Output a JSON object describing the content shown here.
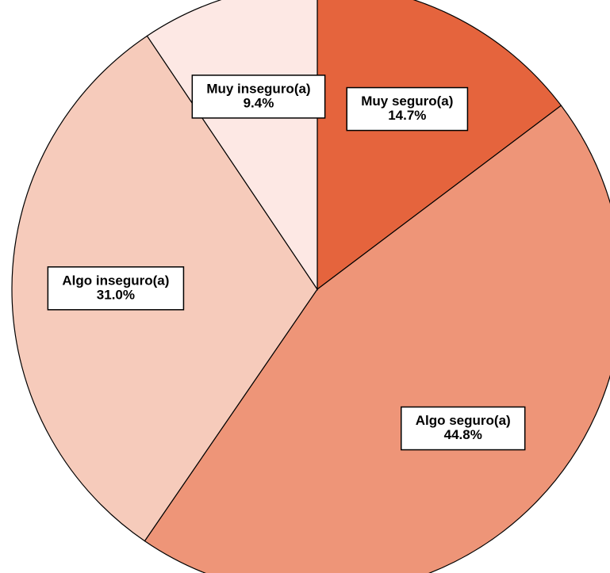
{
  "chart_data": {
    "type": "pie",
    "categories": [
      "Muy seguro(a)",
      "Algo seguro(a)",
      "Algo inseguro(a)",
      "Muy inseguro(a)"
    ],
    "values": [
      14.7,
      44.8,
      31.0,
      9.4
    ],
    "value_labels": [
      "14.7%",
      "44.8%",
      "31.0%",
      "9.4%"
    ],
    "colors": [
      "#e5643d",
      "#ee9578",
      "#f6cbbb",
      "#fde8e4"
    ]
  }
}
